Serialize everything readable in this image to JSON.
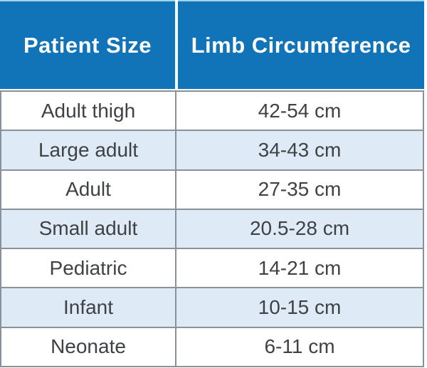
{
  "chart_data": {
    "type": "table",
    "columns": [
      "Patient Size",
      "Limb Circumference"
    ],
    "rows": [
      [
        "Adult thigh",
        "42-54 cm"
      ],
      [
        "Large adult",
        "34-43 cm"
      ],
      [
        "Adult",
        "27-35 cm"
      ],
      [
        "Small adult",
        "20.5-28 cm"
      ],
      [
        "Pediatric",
        "14-21 cm"
      ],
      [
        "Infant",
        "10-15 cm"
      ],
      [
        "Neonate",
        "6-11 cm"
      ]
    ]
  },
  "colors": {
    "header_bg": "#1173b8",
    "header_text": "#ffffff",
    "row_bg": "#ffffff",
    "row_alt_bg": "#deeaf6",
    "grid_border": "#8b9198",
    "row_text": "#3f4245"
  }
}
